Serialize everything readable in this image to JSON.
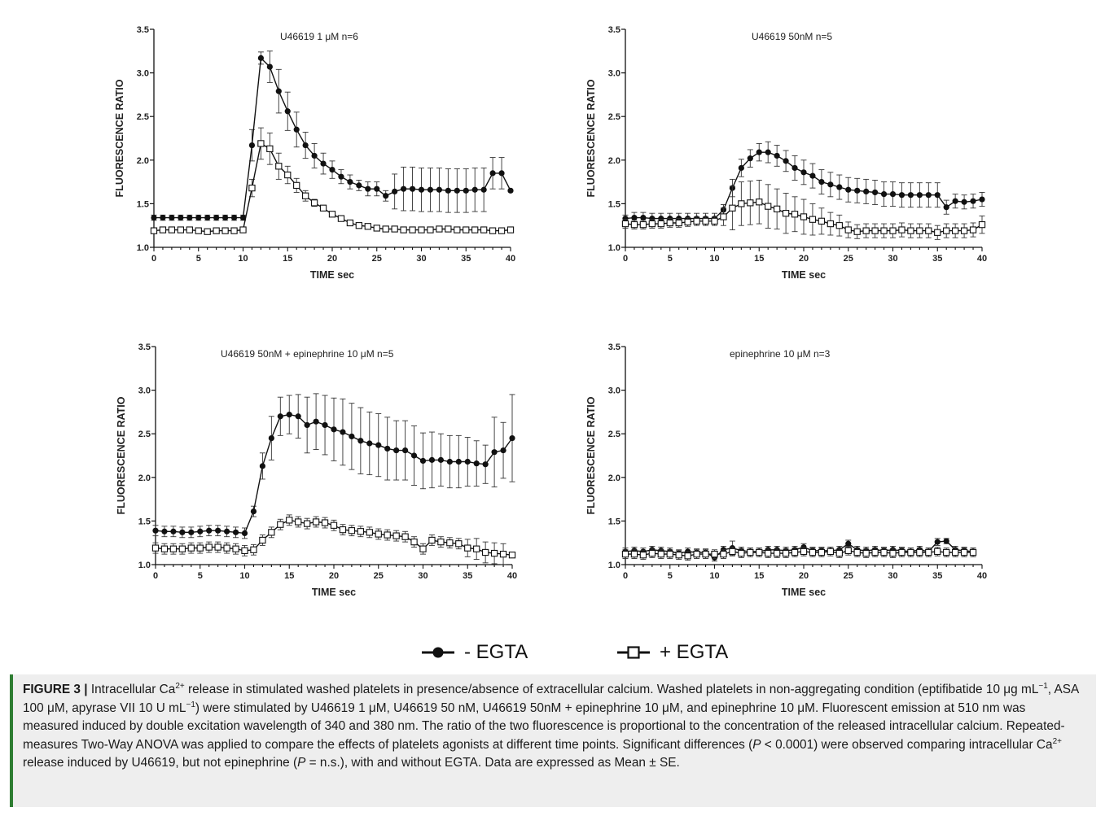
{
  "chart_data": [
    {
      "type": "line",
      "title": "U46619 1 μM n=6",
      "xlabel": "TIME sec",
      "ylabel": "FLUORESCENCE RATIO",
      "xlim": [
        0,
        40
      ],
      "ylim": [
        1.0,
        3.5
      ],
      "x_ticks": [
        "0",
        "5",
        "10",
        "15",
        "20",
        "25",
        "30",
        "35",
        "40"
      ],
      "y_ticks": [
        "1.0",
        "1.5",
        "2.0",
        "2.5",
        "3.0",
        "3.5"
      ],
      "x": [
        0,
        1,
        2,
        3,
        4,
        5,
        6,
        7,
        8,
        9,
        10,
        11,
        12,
        13,
        14,
        15,
        16,
        17,
        18,
        19,
        20,
        21,
        22,
        23,
        24,
        25,
        26,
        27,
        28,
        29,
        30,
        31,
        32,
        33,
        34,
        35,
        36,
        37,
        38,
        39,
        40
      ],
      "series": [
        {
          "name": "- EGTA",
          "marker": "filled-circle",
          "values": [
            1.34,
            1.34,
            1.34,
            1.34,
            1.34,
            1.34,
            1.34,
            1.34,
            1.34,
            1.34,
            1.34,
            2.17,
            3.17,
            3.07,
            2.79,
            2.56,
            2.35,
            2.17,
            2.05,
            1.96,
            1.89,
            1.81,
            1.75,
            1.71,
            1.67,
            1.67,
            1.59,
            1.64,
            1.67,
            1.67,
            1.66,
            1.66,
            1.66,
            1.65,
            1.65,
            1.65,
            1.66,
            1.66,
            1.85,
            1.85,
            1.65
          ],
          "errors": [
            0.03,
            0.03,
            0.03,
            0.03,
            0.03,
            0.03,
            0.03,
            0.03,
            0.03,
            0.03,
            0.03,
            0.18,
            0.07,
            0.18,
            0.25,
            0.22,
            0.2,
            0.15,
            0.14,
            0.12,
            0.1,
            0.08,
            0.08,
            0.06,
            0.08,
            0.08,
            0.06,
            0.2,
            0.25,
            0.25,
            0.25,
            0.25,
            0.25,
            0.25,
            0.25,
            0.25,
            0.25,
            0.25,
            0.18,
            0.18,
            0
          ]
        },
        {
          "name": "+ EGTA",
          "marker": "open-square",
          "values": [
            1.19,
            1.2,
            1.2,
            1.2,
            1.2,
            1.19,
            1.18,
            1.19,
            1.19,
            1.19,
            1.2,
            1.68,
            2.19,
            2.13,
            1.93,
            1.83,
            1.71,
            1.59,
            1.51,
            1.45,
            1.38,
            1.33,
            1.28,
            1.25,
            1.24,
            1.22,
            1.21,
            1.21,
            1.2,
            1.2,
            1.2,
            1.2,
            1.21,
            1.21,
            1.2,
            1.2,
            1.2,
            1.2,
            1.19,
            1.19,
            1.2
          ],
          "errors": [
            0.03,
            0.03,
            0.03,
            0.03,
            0.03,
            0.03,
            0.03,
            0.03,
            0.03,
            0.03,
            0.03,
            0.1,
            0.18,
            0.18,
            0.15,
            0.1,
            0.08,
            0.06,
            0.04,
            0.03,
            0.03,
            0.03,
            0.03,
            0.03,
            0.03,
            0.03,
            0.03,
            0.03,
            0.03,
            0.03,
            0.03,
            0.03,
            0.03,
            0.03,
            0.03,
            0.03,
            0.03,
            0.03,
            0.03,
            0.03,
            0.03
          ]
        }
      ]
    },
    {
      "type": "line",
      "title": "U46619 50nM n=5",
      "xlabel": "TIME sec",
      "ylabel": "FLUORESCENCE RATIO",
      "xlim": [
        0,
        40
      ],
      "ylim": [
        1.0,
        3.5
      ],
      "x_ticks": [
        "0",
        "5",
        "10",
        "15",
        "20",
        "25",
        "30",
        "35",
        "40"
      ],
      "y_ticks": [
        "1.0",
        "1.5",
        "2.0",
        "2.5",
        "3.0",
        "3.5"
      ],
      "x": [
        0,
        1,
        2,
        3,
        4,
        5,
        6,
        7,
        8,
        9,
        10,
        11,
        12,
        13,
        14,
        15,
        16,
        17,
        18,
        19,
        20,
        21,
        22,
        23,
        24,
        25,
        26,
        27,
        28,
        29,
        30,
        31,
        32,
        33,
        34,
        35,
        36,
        37,
        38,
        39,
        40
      ],
      "series": [
        {
          "name": "- EGTA",
          "marker": "filled-circle",
          "values": [
            1.33,
            1.34,
            1.34,
            1.33,
            1.33,
            1.33,
            1.33,
            1.33,
            1.33,
            1.33,
            1.33,
            1.43,
            1.68,
            1.91,
            2.02,
            2.09,
            2.09,
            2.05,
            1.99,
            1.91,
            1.86,
            1.82,
            1.75,
            1.72,
            1.69,
            1.66,
            1.65,
            1.64,
            1.63,
            1.61,
            1.61,
            1.6,
            1.6,
            1.6,
            1.6,
            1.6,
            1.46,
            1.53,
            1.52,
            1.53,
            1.55
          ],
          "errors": [
            0.04,
            0.06,
            0.06,
            0.06,
            0.06,
            0.06,
            0.06,
            0.06,
            0.06,
            0.06,
            0.06,
            0.06,
            0.1,
            0.1,
            0.1,
            0.1,
            0.12,
            0.12,
            0.12,
            0.14,
            0.14,
            0.14,
            0.14,
            0.14,
            0.14,
            0.14,
            0.14,
            0.14,
            0.14,
            0.14,
            0.14,
            0.14,
            0.14,
            0.14,
            0.14,
            0.14,
            0.08,
            0.08,
            0.08,
            0.08,
            0.08
          ]
        },
        {
          "name": "+ EGTA",
          "marker": "open-square",
          "values": [
            1.27,
            1.26,
            1.26,
            1.27,
            1.27,
            1.28,
            1.28,
            1.29,
            1.3,
            1.3,
            1.3,
            1.35,
            1.45,
            1.5,
            1.51,
            1.52,
            1.47,
            1.44,
            1.39,
            1.38,
            1.35,
            1.32,
            1.3,
            1.27,
            1.25,
            1.2,
            1.18,
            1.19,
            1.19,
            1.19,
            1.19,
            1.2,
            1.19,
            1.19,
            1.19,
            1.17,
            1.19,
            1.19,
            1.19,
            1.2,
            1.26
          ],
          "errors": [
            0.05,
            0.05,
            0.05,
            0.05,
            0.05,
            0.05,
            0.05,
            0.05,
            0.05,
            0.05,
            0.05,
            0.1,
            0.25,
            0.25,
            0.25,
            0.25,
            0.25,
            0.23,
            0.23,
            0.2,
            0.2,
            0.18,
            0.15,
            0.13,
            0.12,
            0.09,
            0.08,
            0.08,
            0.08,
            0.08,
            0.08,
            0.08,
            0.08,
            0.08,
            0.08,
            0.08,
            0.08,
            0.08,
            0.08,
            0.08,
            0.1
          ]
        }
      ]
    },
    {
      "type": "line",
      "title": "U46619 50nM + epinephrine 10 μM n=5",
      "xlabel": "TIME sec",
      "ylabel": "FLUORESCENCE RATIO",
      "xlim": [
        0,
        40
      ],
      "ylim": [
        1.0,
        3.5
      ],
      "x_ticks": [
        "0",
        "5",
        "10",
        "15",
        "20",
        "25",
        "30",
        "35",
        "40"
      ],
      "y_ticks": [
        "1.0",
        "1.5",
        "2.0",
        "2.5",
        "3.0",
        "3.5"
      ],
      "x": [
        0,
        1,
        2,
        3,
        4,
        5,
        6,
        7,
        8,
        9,
        10,
        11,
        12,
        13,
        14,
        15,
        16,
        17,
        18,
        19,
        20,
        21,
        22,
        23,
        24,
        25,
        26,
        27,
        28,
        29,
        30,
        31,
        32,
        33,
        34,
        35,
        36,
        37,
        38,
        39,
        40
      ],
      "series": [
        {
          "name": "- EGTA",
          "marker": "filled-circle",
          "values": [
            1.39,
            1.38,
            1.38,
            1.37,
            1.37,
            1.38,
            1.39,
            1.39,
            1.38,
            1.37,
            1.36,
            1.61,
            2.13,
            2.45,
            2.7,
            2.72,
            2.7,
            2.6,
            2.64,
            2.6,
            2.55,
            2.52,
            2.47,
            2.42,
            2.39,
            2.37,
            2.33,
            2.31,
            2.31,
            2.25,
            2.19,
            2.2,
            2.2,
            2.18,
            2.18,
            2.18,
            2.16,
            2.15,
            2.29,
            2.31,
            2.45
          ],
          "errors": [
            0.06,
            0.06,
            0.06,
            0.06,
            0.06,
            0.06,
            0.06,
            0.06,
            0.06,
            0.06,
            0.06,
            0.06,
            0.15,
            0.25,
            0.22,
            0.22,
            0.25,
            0.32,
            0.32,
            0.34,
            0.36,
            0.38,
            0.38,
            0.38,
            0.36,
            0.36,
            0.36,
            0.34,
            0.34,
            0.34,
            0.32,
            0.32,
            0.3,
            0.3,
            0.3,
            0.28,
            0.26,
            0.22,
            0.4,
            0.32,
            0.5
          ]
        },
        {
          "name": "+ EGTA",
          "marker": "open-square",
          "values": [
            1.19,
            1.18,
            1.18,
            1.18,
            1.19,
            1.19,
            1.2,
            1.2,
            1.19,
            1.18,
            1.16,
            1.17,
            1.28,
            1.37,
            1.46,
            1.51,
            1.49,
            1.47,
            1.49,
            1.48,
            1.45,
            1.4,
            1.39,
            1.38,
            1.37,
            1.35,
            1.34,
            1.33,
            1.32,
            1.26,
            1.18,
            1.28,
            1.26,
            1.25,
            1.24,
            1.19,
            1.18,
            1.14,
            1.13,
            1.12,
            1.11
          ],
          "errors": [
            0.06,
            0.06,
            0.06,
            0.06,
            0.06,
            0.06,
            0.06,
            0.06,
            0.06,
            0.06,
            0.06,
            0.06,
            0.06,
            0.06,
            0.06,
            0.06,
            0.06,
            0.06,
            0.06,
            0.06,
            0.06,
            0.06,
            0.06,
            0.06,
            0.06,
            0.06,
            0.06,
            0.06,
            0.06,
            0.06,
            0.06,
            0.06,
            0.06,
            0.06,
            0.06,
            0.1,
            0.12,
            0.12,
            0.12,
            0.12,
            0.02
          ]
        }
      ]
    },
    {
      "type": "line",
      "title": "epinephrine 10 μM n=3",
      "xlabel": "TIME sec",
      "ylabel": "FLUORESCENCE RATIO",
      "xlim": [
        0,
        40
      ],
      "ylim": [
        1.0,
        3.5
      ],
      "x_ticks": [
        "0",
        "5",
        "10",
        "15",
        "20",
        "25",
        "30",
        "35",
        "40"
      ],
      "y_ticks": [
        "1.0",
        "1.5",
        "2.0",
        "2.5",
        "3.0",
        "3.5"
      ],
      "x": [
        0,
        1,
        2,
        3,
        4,
        5,
        6,
        7,
        8,
        9,
        10,
        11,
        12,
        13,
        14,
        15,
        16,
        17,
        18,
        19,
        20,
        21,
        22,
        23,
        24,
        25,
        26,
        27,
        28,
        29,
        30,
        31,
        32,
        33,
        34,
        35,
        36,
        37,
        38,
        39
      ],
      "series": [
        {
          "name": "- EGTA",
          "marker": "filled-circle",
          "values": [
            1.15,
            1.16,
            1.15,
            1.17,
            1.16,
            1.15,
            1.13,
            1.15,
            1.14,
            1.14,
            1.08,
            1.17,
            1.19,
            1.16,
            1.15,
            1.15,
            1.17,
            1.17,
            1.16,
            1.17,
            1.2,
            1.16,
            1.16,
            1.16,
            1.17,
            1.24,
            1.17,
            1.16,
            1.17,
            1.16,
            1.17,
            1.16,
            1.15,
            1.17,
            1.15,
            1.26,
            1.27,
            1.17,
            1.16,
            1.15
          ],
          "errors": [
            0.04,
            0.04,
            0.04,
            0.04,
            0.04,
            0.04,
            0.04,
            0.04,
            0.04,
            0.04,
            0.04,
            0.04,
            0.08,
            0.04,
            0.04,
            0.04,
            0.04,
            0.04,
            0.04,
            0.04,
            0.04,
            0.04,
            0.04,
            0.04,
            0.04,
            0.04,
            0.04,
            0.04,
            0.04,
            0.04,
            0.04,
            0.04,
            0.04,
            0.04,
            0.04,
            0.04,
            0.03,
            0.04,
            0.04,
            0.04
          ]
        },
        {
          "name": "+ EGTA",
          "marker": "open-square",
          "values": [
            1.12,
            1.12,
            1.11,
            1.13,
            1.12,
            1.12,
            1.11,
            1.1,
            1.12,
            1.12,
            1.12,
            1.12,
            1.15,
            1.13,
            1.14,
            1.14,
            1.13,
            1.13,
            1.13,
            1.14,
            1.15,
            1.14,
            1.14,
            1.15,
            1.13,
            1.16,
            1.14,
            1.13,
            1.14,
            1.14,
            1.13,
            1.14,
            1.14,
            1.14,
            1.14,
            1.15,
            1.14,
            1.14,
            1.14,
            1.14
          ],
          "errors": [
            0.05,
            0.05,
            0.05,
            0.05,
            0.05,
            0.05,
            0.05,
            0.05,
            0.05,
            0.05,
            0.05,
            0.05,
            0.05,
            0.05,
            0.05,
            0.05,
            0.05,
            0.05,
            0.05,
            0.05,
            0.05,
            0.05,
            0.05,
            0.05,
            0.05,
            0.05,
            0.05,
            0.05,
            0.05,
            0.05,
            0.05,
            0.05,
            0.05,
            0.05,
            0.05,
            0.05,
            0.05,
            0.05,
            0.05,
            0.05
          ]
        }
      ]
    }
  ],
  "legend": {
    "minus_egta": "- EGTA",
    "plus_egta": "+ EGTA"
  },
  "caption": {
    "label": "FIGURE 3 |",
    "t1": " Intracellular Ca",
    "sup_1": "2+",
    "t2": " release in stimulated washed platelets in presence/absence of extracellular calcium. Washed platelets in non-aggregating condition (eptifibatide 10 μg mL",
    "sup_2": "−1",
    "t3": ", ASA 100 μM, apyrase VII 10 U mL",
    "sup_3": "−1",
    "t4": ") were stimulated by U46619 1 μM, U46619 50 nM, U46619 50nM + epinephrine 10 μM, and epinephrine 10 μM. Fluorescent emission at 510 nm was measured induced by double excitation wavelength of 340 and 380 nm. The ratio of the two fluorescence is proportional to the concentration of the released intracellular calcium. Repeated-measures Two-Way ANOVA was applied to compare the effects of platelets agonists at different time points. Significant differences (",
    "p1": "P",
    "t5": " < 0.0001) were observed comparing intracellular Ca",
    "sup_4": "2+",
    "t6": " release induced by U46619, but not epinephrine (",
    "p2": "P",
    "t7": " = n.s.), with and without EGTA. Data are expressed as Mean ± SE."
  }
}
